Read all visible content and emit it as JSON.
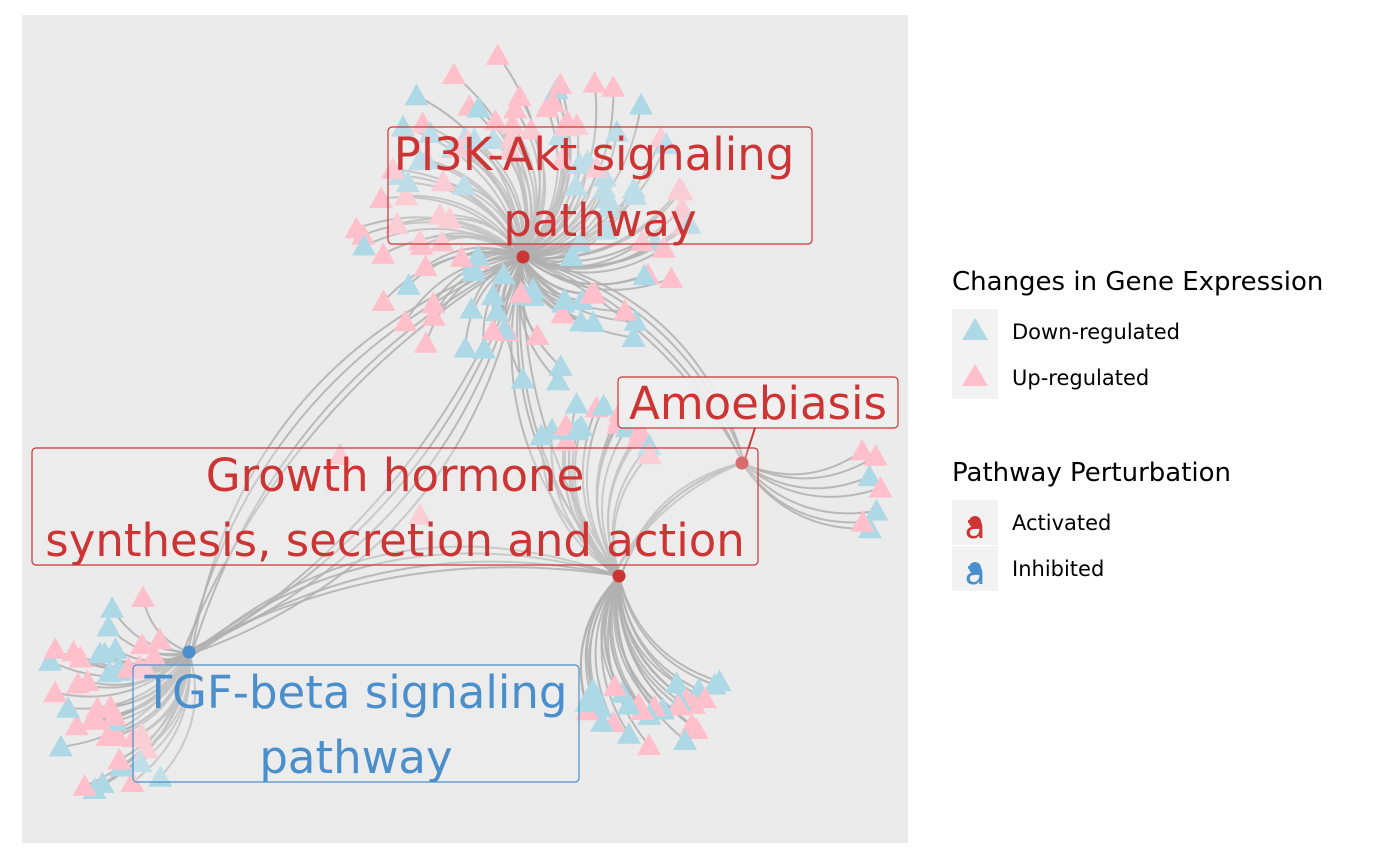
{
  "colors": {
    "panel_bg": "#ebebeb",
    "edge": "#b0b0b0",
    "down": "#add8e6",
    "up": "#ffc0cb",
    "activated": "#cd3434",
    "inhibited": "#4a8fcb",
    "label_box_fill": "#f0efef"
  },
  "pathways": [
    {
      "id": "pi3k",
      "label_lines": [
        "PI3K-Akt signaling",
        "pathway"
      ],
      "status": "activated"
    },
    {
      "id": "amoebiasis",
      "label_lines": [
        "Amoebiasis"
      ],
      "status": "activated"
    },
    {
      "id": "growth",
      "label_lines": [
        "Growth hormone",
        "synthesis, secretion and action"
      ],
      "status": "activated"
    },
    {
      "id": "tgf",
      "label_lines": [
        "TGF-beta signaling",
        "pathway"
      ],
      "status": "inhibited"
    }
  ],
  "legend": {
    "expression": {
      "title": "Changes in Gene Expression",
      "items": [
        {
          "label": "Down-regulated",
          "color_key": "down"
        },
        {
          "label": "Up-regulated",
          "color_key": "up"
        }
      ]
    },
    "perturbation": {
      "title": "Pathway Perturbation",
      "items": [
        {
          "label": "Activated",
          "color_key": "activated",
          "glyph": "a"
        },
        {
          "label": "Inhibited",
          "color_key": "inhibited",
          "glyph": "a"
        }
      ]
    }
  }
}
